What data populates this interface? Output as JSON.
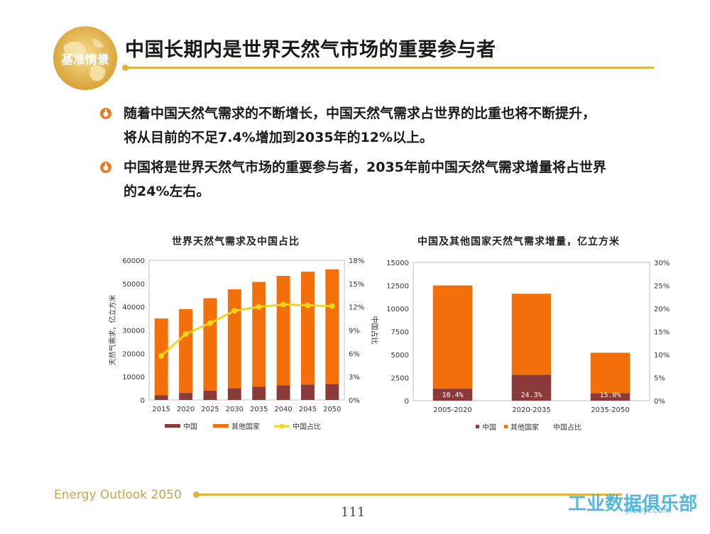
{
  "slide": {
    "badge": "基准情景",
    "title": "中国长期内是世界天然气市场的重要参与者",
    "bullets": [
      {
        "line1": "随着中国天然气需求的不断增长，中国天然气需求占世界的比重也将不断提升，",
        "line2": "将从目前的不足7.4%增加到2035年的12%以上。"
      },
      {
        "line1": "中国将是世界天然气市场的重要参与者，2035年前中国天然气需求增量将占世界",
        "line2": "的24%左右。"
      }
    ],
    "footer": "Energy Outlook 2050",
    "page_number": "111",
    "watermark": "工业数据俱乐部",
    "watermark_url": "yiboyi.com"
  },
  "colors": {
    "china": "#8b3a3a",
    "other": "#f26f0a",
    "share": "#f2d51c",
    "gold": "#e0b33a"
  },
  "chart_data": [
    {
      "type": "bar",
      "title": "世界天然气需求及中国占比",
      "ylabel": "天然气需求，亿立方米",
      "y2label": "中国占比",
      "categories": [
        "2015",
        "2020",
        "2025",
        "2030",
        "2035",
        "2040",
        "2045",
        "2050"
      ],
      "ylim": [
        0,
        60000
      ],
      "yticks": [
        "0",
        "10000",
        "20000",
        "30000",
        "40000",
        "50000",
        "60000"
      ],
      "y2lim": [
        0,
        18
      ],
      "y2ticks": [
        "0%",
        "3%",
        "6%",
        "9%",
        "12%",
        "15%",
        "18%"
      ],
      "series": [
        {
          "name": "中国",
          "stack": true,
          "values": [
            2000,
            3000,
            4000,
            5000,
            5700,
            6300,
            6600,
            6800
          ]
        },
        {
          "name": "其他国家",
          "stack": true,
          "values": [
            33000,
            36000,
            39700,
            42500,
            45000,
            47000,
            48500,
            49300
          ]
        },
        {
          "name": "中国占比",
          "axis": "right",
          "values": [
            5.7,
            8.5,
            9.9,
            11.5,
            12.0,
            12.3,
            12.2,
            12.1
          ]
        }
      ],
      "legend": "bottom"
    },
    {
      "type": "bar",
      "title": "中国及其他国家天然气需求增量，亿立方米",
      "categories": [
        "2005-2020",
        "2020-2035",
        "2035-2050"
      ],
      "ylim": [
        0,
        15000
      ],
      "yticks": [
        "0",
        "2500",
        "5000",
        "7500",
        "10000",
        "12500",
        "15000"
      ],
      "y2lim": [
        0,
        30
      ],
      "y2ticks": [
        "0%",
        "5%",
        "10%",
        "15%",
        "20%",
        "25%",
        "30%"
      ],
      "series": [
        {
          "name": "中国",
          "stack": true,
          "values": [
            1300,
            2800,
            800
          ]
        },
        {
          "name": "其他国家",
          "stack": true,
          "values": [
            11200,
            8800,
            4400
          ]
        },
        {
          "name": "中国占比",
          "axis": "right",
          "values": [
            10.4,
            24.3,
            15.0
          ]
        }
      ],
      "data_labels": [
        "10.4%",
        "24.3%",
        "15.0%"
      ],
      "legend": "bottom"
    }
  ]
}
